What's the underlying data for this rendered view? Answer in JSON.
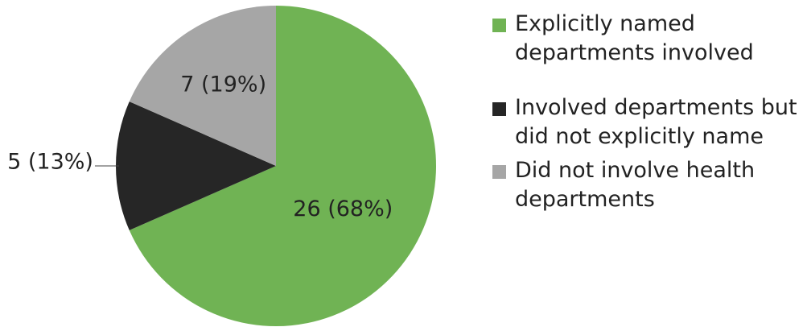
{
  "chart_data": {
    "type": "pie",
    "categories": [
      "Explicitly named departments involved",
      "Involved departments but did not explicitly name",
      "Did not involve health departments"
    ],
    "values": [
      26,
      5,
      7
    ],
    "value_labels": [
      "26 (68%)",
      "5 (13%)",
      "7 (19%)"
    ],
    "colors": [
      "#70b354",
      "#262626",
      "#a6a6a6"
    ],
    "legend": "right"
  }
}
